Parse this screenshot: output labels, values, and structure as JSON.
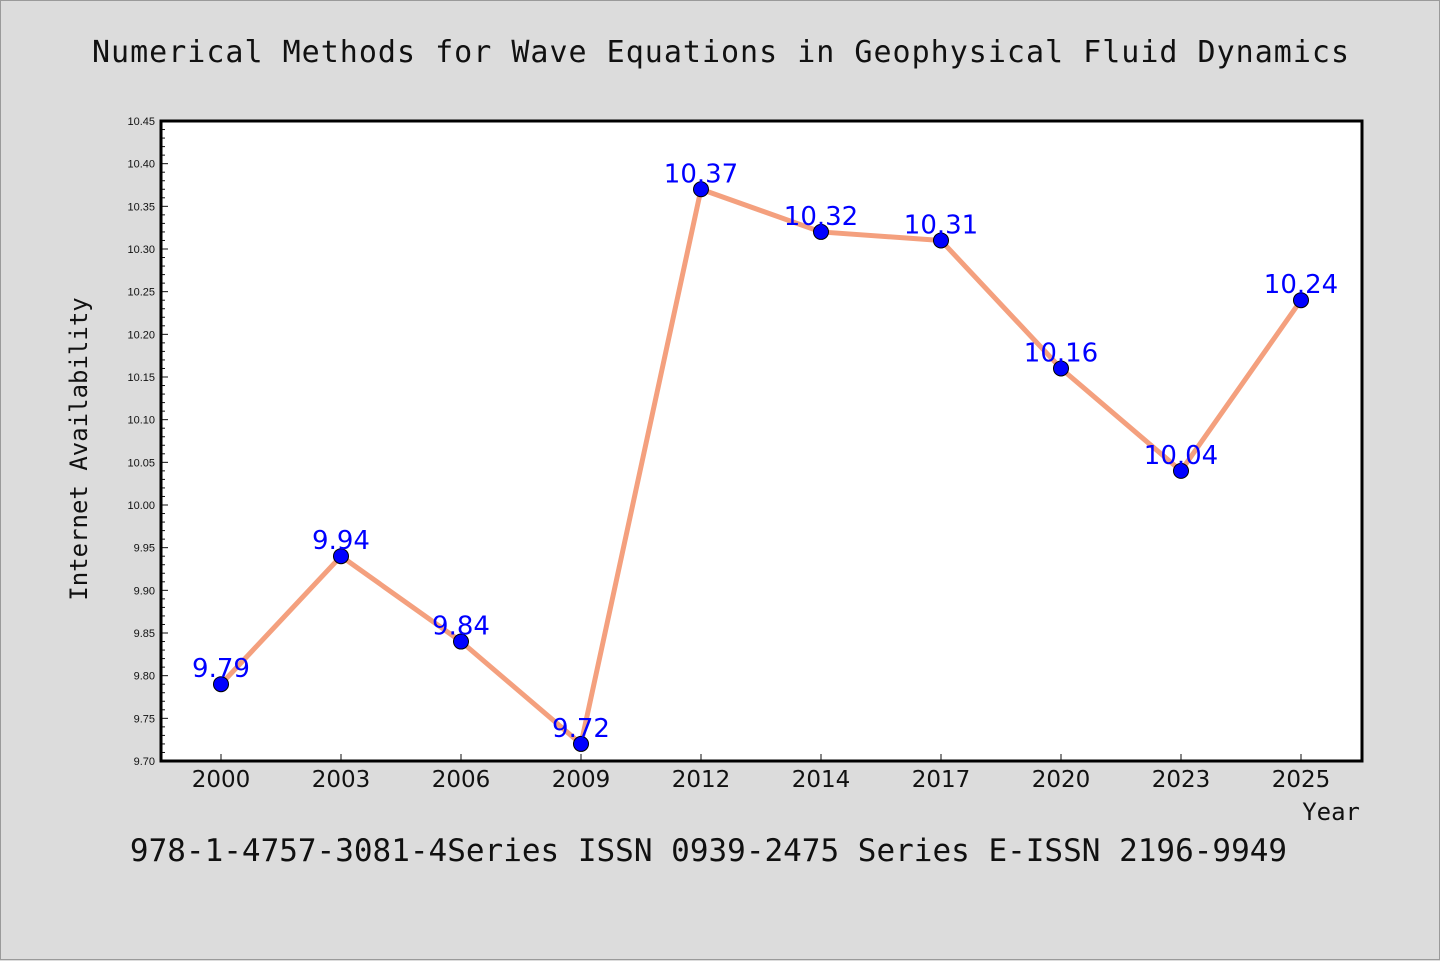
{
  "title": "Numerical Methods for Wave Equations in Geophysical Fluid Dynamics",
  "footer": "978-1-4757-3081-4Series ISSN 0939-2475 Series E-ISSN 2196-9949",
  "colors": {
    "background": "#dcdcdc",
    "plot_area": "#ffffff",
    "line": "#f4a07e",
    "marker": "#0000ff",
    "data_label": "#0000ff"
  },
  "chart_data": {
    "type": "line",
    "title": "Numerical Methods for Wave Equations in Geophysical Fluid Dynamics",
    "xlabel": "Year",
    "ylabel": "Internet Availability",
    "categories": [
      "2000",
      "2003",
      "2006",
      "2009",
      "2012",
      "2014",
      "2017",
      "2020",
      "2023",
      "2025"
    ],
    "values": [
      9.79,
      9.94,
      9.84,
      9.72,
      10.37,
      10.32,
      10.31,
      10.16,
      10.04,
      10.24
    ],
    "data_labels": [
      "9.79",
      "9.94",
      "9.84",
      "9.72",
      "10.37",
      "10.32",
      "10.31",
      "10.16",
      "10.04",
      "10.24"
    ],
    "ylim": [
      9.7,
      10.45
    ],
    "yticks": [
      "9.70",
      "9.75",
      "9.80",
      "9.85",
      "9.90",
      "9.95",
      "10.00",
      "10.05",
      "10.10",
      "10.15",
      "10.20",
      "10.25",
      "10.30",
      "10.35",
      "10.40",
      "10.45"
    ],
    "grid": false,
    "legend": "none"
  }
}
